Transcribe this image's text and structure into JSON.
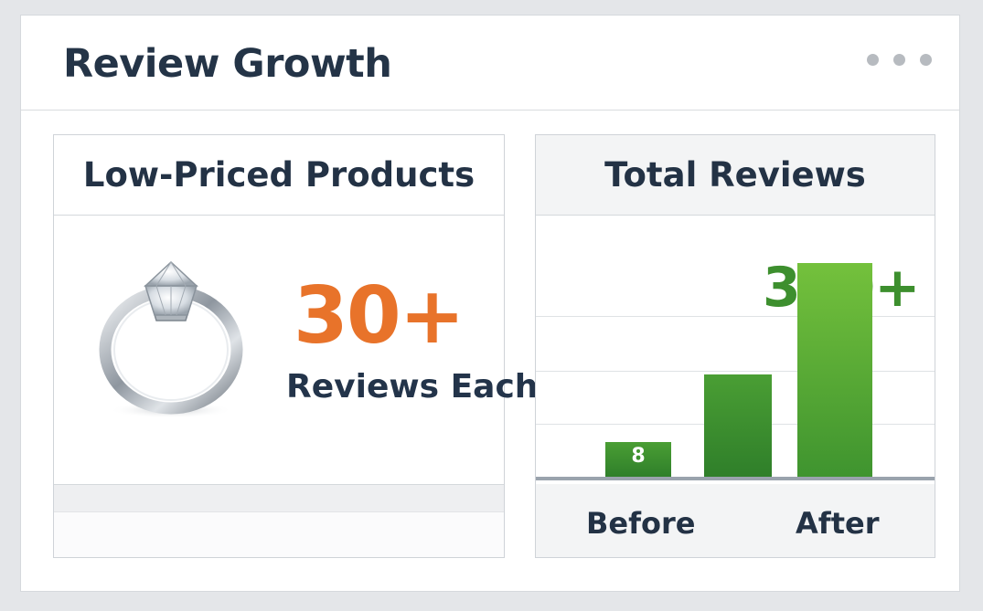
{
  "card": {
    "title": "Review Growth",
    "menu_icon": "more-horizontal-icon"
  },
  "left_panel": {
    "title": "Low-Priced Products",
    "image": "diamond-ring-icon",
    "stat_value": "30+",
    "stat_label": "Reviews Each",
    "accent_color": "#e8732a"
  },
  "right_panel": {
    "title": "Total Reviews",
    "callout": "360+",
    "callout_color": "#3d8f2e"
  },
  "chart_data": {
    "type": "bar",
    "categories": [
      "Before",
      "",
      "After"
    ],
    "values": [
      8,
      80,
      200
    ],
    "data_labels": [
      "8",
      "",
      ""
    ],
    "title": "",
    "xlabel": "",
    "ylabel": "",
    "ylim": [
      0,
      280
    ],
    "grid": true,
    "colors": [
      "#3d8f2e",
      "#3d8f2e",
      "#4ea634"
    ]
  }
}
